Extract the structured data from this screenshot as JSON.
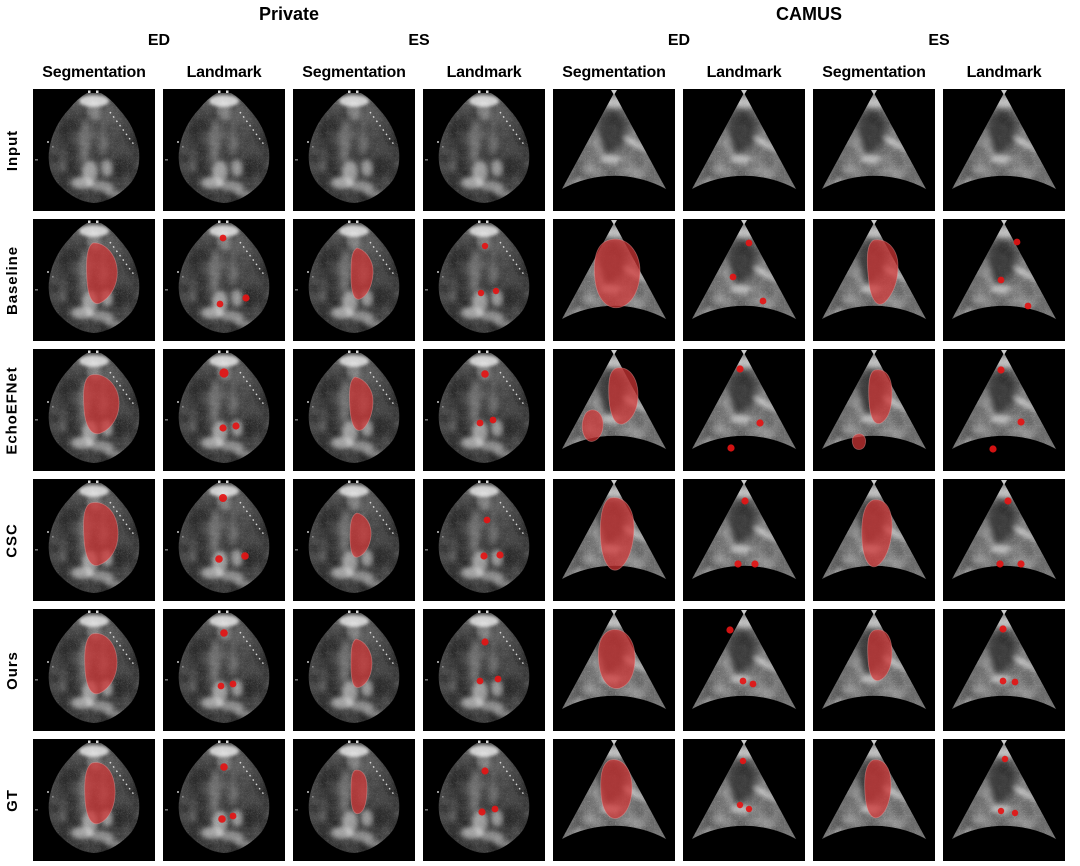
{
  "figure": {
    "groups": [
      {
        "label": "Private"
      },
      {
        "label": "CAMUS"
      }
    ],
    "phases": [
      "ED",
      "ES",
      "ED",
      "ES"
    ],
    "columns": [
      "Segmentation",
      "Landmark",
      "Segmentation",
      "Landmark",
      "Segmentation",
      "Landmark",
      "Segmentation",
      "Landmark"
    ],
    "row_labels": [
      "Input",
      "Baseline",
      "EchoEFNet",
      "CSC",
      "Ours",
      "GT"
    ]
  },
  "colors": {
    "page_bg": "#ffffff",
    "cell_bg": "#000000",
    "seg_fill": "#d23636",
    "seg_opacity": 0.72,
    "seg_stroke": "#f0a0a0",
    "dot_fill": "#e41414"
  },
  "cells": [
    [
      {
        "base": "p-ed"
      },
      {
        "base": "p-ed"
      },
      {
        "base": "p-es"
      },
      {
        "base": "p-es"
      },
      {
        "base": "c-ed"
      },
      {
        "base": "c-ed"
      },
      {
        "base": "c-es"
      },
      {
        "base": "c-es"
      }
    ],
    [
      {
        "base": "p-ed",
        "seg": [
          "M60,24 C70,23 82,33 84,49 C86,66 77,79 67,84 C60,87 55,78 54,62 C53,45 53,28 60,24 Z"
        ]
      },
      {
        "base": "p-ed",
        "dots": [
          [
            60,
            19,
            3.4
          ],
          [
            57,
            85,
            3.4
          ],
          [
            83,
            79,
            3.6
          ]
        ]
      },
      {
        "base": "p-es",
        "seg": [
          "M64,29 C73,31 81,42 80,55 C79,68 74,77 67,80 C61,82 58,73 58,58 C58,43 58,32 64,29 Z"
        ]
      },
      {
        "base": "p-es",
        "dots": [
          [
            62,
            27,
            3.2
          ],
          [
            58,
            74,
            3.2
          ],
          [
            73,
            72,
            3.2
          ]
        ]
      },
      {
        "base": "c-ed",
        "seg": [
          "M56,21 C74,16 87,33 87,52 C87,70 80,84 68,88 C54,92 44,79 42,61 C40,43 42,25 56,21 Z"
        ]
      },
      {
        "base": "c-ed",
        "dots": [
          [
            66,
            24,
            3.4
          ],
          [
            50,
            58,
            3.4
          ],
          [
            80,
            82,
            3.4
          ]
        ]
      },
      {
        "base": "c-es",
        "seg": [
          "M61,21 C75,19 85,31 85,47 C85,63 80,75 72,83 C64,90 58,80 56,64 C54,47 52,25 61,21 Z"
        ]
      },
      {
        "base": "c-es",
        "dots": [
          [
            74,
            23,
            3.4
          ],
          [
            58,
            61,
            3.4
          ],
          [
            85,
            87,
            3.4
          ]
        ]
      }
    ],
    [
      {
        "base": "p-ed",
        "seg": [
          "M58,26 C72,23 85,36 86,52 C87,68 78,80 68,84 C58,88 52,76 51,60 C50,44 50,29 58,26 Z"
        ]
      },
      {
        "base": "p-ed",
        "dots": [
          [
            61,
            24,
            4.6
          ],
          [
            60,
            79,
            3.6
          ],
          [
            73,
            77,
            3.6
          ]
        ]
      },
      {
        "base": "p-es",
        "seg": [
          "M62,28 C72,30 80,40 80,52 C80,64 76,74 70,80 C63,85 58,76 57,60 C56,44 56,31 62,28 Z"
        ]
      },
      {
        "base": "p-es",
        "dots": [
          [
            62,
            25,
            3.8
          ],
          [
            57,
            74,
            3.4
          ],
          [
            70,
            71,
            3.4
          ]
        ]
      },
      {
        "base": "c-ed",
        "seg": [
          "M64,19 C77,17 85,30 85,46 C85,62 78,72 70,75 C62,77 57,66 56,50 C55,33 56,21 64,19 Z",
          "M38,61 C46,60 51,68 50,78 C49,88 42,94 36,92 C30,89 28,79 30,71 C32,64 34,62 38,61 Z"
        ]
      },
      {
        "base": "c-ed",
        "dots": [
          [
            57,
            20,
            3.6
          ],
          [
            77,
            74,
            3.6
          ],
          [
            48,
            99,
            3.6
          ]
        ]
      },
      {
        "base": "c-es",
        "seg": [
          "M62,21 C73,19 79,28 79,44 C79,60 75,70 68,74 C61,77 57,68 56,52 C55,35 56,23 62,21 Z",
          "M45,85 C51,84 54,90 52,96 C50,102 42,102 40,96 C38,90 40,86 45,85 Z"
        ]
      },
      {
        "base": "c-es",
        "dots": [
          [
            58,
            21,
            3.6
          ],
          [
            78,
            73,
            3.6
          ],
          [
            50,
            100,
            3.6
          ]
        ]
      }
    ],
    [
      {
        "base": "p-ed",
        "seg": [
          "M58,24 C72,21 84,33 85,52 C86,70 77,82 66,86 C57,89 52,77 51,60 C50,42 50,27 58,24 Z"
        ]
      },
      {
        "base": "p-ed",
        "dots": [
          [
            60,
            19,
            4.0
          ],
          [
            56,
            80,
            3.8
          ],
          [
            82,
            77,
            3.8
          ]
        ]
      },
      {
        "base": "p-es",
        "seg": [
          "M64,34 C73,36 79,46 78,57 C77,68 71,76 65,78 C59,80 57,70 57,58 C57,46 58,36 64,34 Z"
        ]
      },
      {
        "base": "p-es",
        "dots": [
          [
            64,
            41,
            3.4
          ],
          [
            61,
            77,
            3.6
          ],
          [
            77,
            76,
            3.6
          ]
        ]
      },
      {
        "base": "c-ed",
        "seg": [
          "M57,19 C71,16 81,29 81,48 C81,68 75,84 66,90 C57,95 50,83 48,65 C46,45 48,23 57,19 Z"
        ]
      },
      {
        "base": "c-ed",
        "dots": [
          [
            62,
            22,
            3.6
          ],
          [
            55,
            85,
            3.6
          ],
          [
            72,
            85,
            3.6
          ]
        ]
      },
      {
        "base": "c-es",
        "seg": [
          "M60,21 C73,19 80,31 79,50 C78,68 72,82 64,87 C56,91 50,79 49,61 C48,43 50,25 60,21 Z"
        ]
      },
      {
        "base": "c-es",
        "dots": [
          [
            65,
            22,
            3.6
          ],
          [
            57,
            85,
            3.6
          ],
          [
            78,
            85,
            3.6
          ]
        ]
      }
    ],
    [
      {
        "base": "p-ed",
        "seg": [
          "M59,25 C72,22 83,34 84,51 C85,67 77,79 67,84 C58,88 53,77 52,60 C51,43 52,29 59,25 Z"
        ]
      },
      {
        "base": "p-ed",
        "dots": [
          [
            61,
            24,
            3.8
          ],
          [
            58,
            77,
            3.4
          ],
          [
            70,
            75,
            3.4
          ]
        ]
      },
      {
        "base": "p-es",
        "seg": [
          "M63,30 C72,32 79,42 79,54 C79,66 74,75 67,78 C60,81 58,71 58,57 C58,43 58,33 63,30 Z"
        ]
      },
      {
        "base": "p-es",
        "dots": [
          [
            62,
            33,
            3.6
          ],
          [
            57,
            72,
            3.4
          ],
          [
            75,
            70,
            3.4
          ]
        ]
      },
      {
        "base": "c-ed",
        "seg": [
          "M58,21 C72,18 82,31 82,49 C82,66 76,76 67,79 C57,82 48,72 46,56 C44,39 46,25 58,21 Z"
        ]
      },
      {
        "base": "c-ed",
        "dots": [
          [
            47,
            21,
            3.6
          ],
          [
            60,
            72,
            3.4
          ],
          [
            70,
            75,
            3.4
          ]
        ]
      },
      {
        "base": "c-es",
        "seg": [
          "M62,21 C73,19 79,28 79,44 C79,58 74,68 67,71 C60,74 56,66 55,50 C54,33 55,23 62,21 Z"
        ]
      },
      {
        "base": "c-es",
        "dots": [
          [
            60,
            20,
            3.6
          ],
          [
            60,
            72,
            3.4
          ],
          [
            72,
            73,
            3.4
          ]
        ]
      }
    ],
    [
      {
        "base": "p-ed",
        "seg": [
          "M59,24 C71,21 81,32 82,50 C83,67 76,80 67,84 C58,88 53,77 52,60 C51,43 52,28 59,24 Z"
        ]
      },
      {
        "base": "p-ed",
        "dots": [
          [
            61,
            28,
            3.8
          ],
          [
            59,
            80,
            3.8
          ],
          [
            70,
            77,
            3.4
          ]
        ]
      },
      {
        "base": "p-es",
        "seg": [
          "M63,31 C70,31 74,37 74,48 C74,62 72,71 67,74 C61,77 58,70 58,56 C58,42 58,32 63,31 Z"
        ]
      },
      {
        "base": "p-es",
        "dots": [
          [
            62,
            32,
            3.6
          ],
          [
            59,
            73,
            3.6
          ],
          [
            72,
            70,
            3.4
          ]
        ]
      },
      {
        "base": "c-ed",
        "seg": [
          "M57,21 C70,18 79,31 79,48 C79,65 73,76 65,79 C56,82 49,71 48,55 C47,39 48,25 57,21 Z"
        ]
      },
      {
        "base": "c-ed",
        "dots": [
          [
            60,
            22,
            3.2
          ],
          [
            57,
            66,
            3.2
          ],
          [
            66,
            70,
            3.2
          ]
        ]
      },
      {
        "base": "c-es",
        "seg": [
          "M60,21 C71,19 78,29 78,45 C78,61 73,74 66,78 C58,82 53,71 52,55 C51,39 52,25 60,21 Z"
        ]
      },
      {
        "base": "c-es",
        "dots": [
          [
            62,
            20,
            3.2
          ],
          [
            58,
            72,
            3.2
          ],
          [
            72,
            74,
            3.2
          ]
        ]
      }
    ]
  ]
}
